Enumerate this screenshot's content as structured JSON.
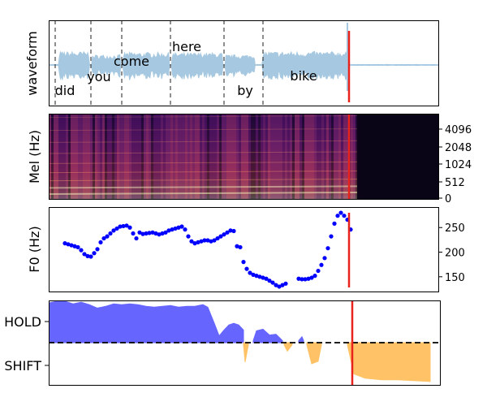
{
  "chart_data": [
    {
      "type": "line",
      "panel": "waveform",
      "ylabel": "waveform",
      "x_range": [
        0,
        2.4
      ],
      "color": "#a6c8e0",
      "words": [
        {
          "label": "did",
          "x": 0.1
        },
        {
          "label": "you",
          "x": 0.31
        },
        {
          "label": "come",
          "x": 0.51
        },
        {
          "label": "here",
          "x": 0.85
        },
        {
          "label": "by",
          "x": 1.21
        },
        {
          "label": "bike",
          "x": 1.57
        }
      ],
      "word_boundaries": [
        0.04,
        0.26,
        0.45,
        0.75,
        1.08,
        1.32
      ],
      "marker_x": 1.85,
      "marker_color": "#e8231c"
    },
    {
      "type": "heatmap",
      "panel": "mel",
      "ylabel": "Mel (Hz)",
      "yticks": [
        "0",
        "512",
        "1024",
        "2048",
        "4096"
      ],
      "x_range": [
        0,
        2.4
      ],
      "speech_end_x": 1.9,
      "marker_x": 1.85,
      "marker_color": "#e8231c"
    },
    {
      "type": "scatter",
      "panel": "f0",
      "ylabel": "F0 (Hz)",
      "yticks": [
        "150",
        "200",
        "250"
      ],
      "ylim": [
        120,
        290
      ],
      "x_range": [
        0,
        2.4
      ],
      "color": "#0000ff",
      "segments": [
        {
          "x": [
            0.1,
            0.12,
            0.14,
            0.16,
            0.18,
            0.2,
            0.22,
            0.24,
            0.26,
            0.28
          ],
          "y": [
            218,
            216,
            214,
            212,
            210,
            204,
            196,
            192,
            191,
            198
          ]
        },
        {
          "x": [
            0.3,
            0.32,
            0.34,
            0.36,
            0.38,
            0.4,
            0.42,
            0.44,
            0.46,
            0.48,
            0.5,
            0.52,
            0.54,
            0.56
          ],
          "y": [
            206,
            220,
            228,
            232,
            238,
            244,
            248,
            252,
            253,
            254,
            250,
            238,
            228,
            240
          ]
        },
        {
          "x": [
            0.58,
            0.6,
            0.62,
            0.64,
            0.66,
            0.68,
            0.7,
            0.72,
            0.74,
            0.76
          ],
          "y": [
            237,
            238,
            239,
            240,
            238,
            236,
            238,
            240,
            244,
            246
          ]
        },
        {
          "x": [
            0.78,
            0.8,
            0.82,
            0.84,
            0.86,
            0.88,
            0.9,
            0.92,
            0.94,
            0.96,
            0.98,
            1.0,
            1.02,
            1.04,
            1.06,
            1.08,
            1.1,
            1.12,
            1.14
          ],
          "y": [
            248,
            250,
            252,
            246,
            232,
            222,
            218,
            220,
            222,
            224,
            224,
            222,
            224,
            228,
            232,
            236,
            240,
            244,
            243
          ]
        },
        {
          "x": [
            1.16,
            1.18,
            1.2,
            1.22,
            1.24,
            1.26,
            1.28,
            1.3,
            1.32,
            1.34,
            1.36,
            1.38,
            1.4,
            1.42,
            1.44,
            1.46
          ],
          "y": [
            212,
            210,
            180,
            166,
            158,
            154,
            152,
            150,
            148,
            146,
            142,
            138,
            133,
            130,
            133,
            136
          ]
        },
        {
          "x": [
            1.54,
            1.56,
            1.58,
            1.6,
            1.62,
            1.64,
            1.66,
            1.68,
            1.7,
            1.72,
            1.74,
            1.76,
            1.78,
            1.8,
            1.82,
            1.84,
            1.86
          ],
          "y": [
            146,
            145,
            145,
            146,
            148,
            152,
            162,
            174,
            188,
            208,
            232,
            258,
            274,
            280,
            274,
            266,
            246
          ]
        }
      ],
      "marker_x": 1.85,
      "marker_color": "#e8231c"
    },
    {
      "type": "area",
      "panel": "hold_shift",
      "yticks": [
        "HOLD",
        "SHIFT"
      ],
      "ylim": [
        -1,
        1
      ],
      "x_range": [
        0,
        2.4
      ],
      "hold_color": "#6666ff",
      "shift_color": "#ffc266",
      "hold": {
        "x": [
          0.0,
          0.05,
          0.1,
          0.15,
          0.2,
          0.25,
          0.3,
          0.35,
          0.4,
          0.45,
          0.5,
          0.55,
          0.6,
          0.65,
          0.7,
          0.75,
          0.8,
          0.85,
          0.9,
          0.95,
          0.98,
          1.02,
          1.05,
          1.08,
          1.11,
          1.14,
          1.17,
          1.2
        ],
        "y": [
          0.94,
          0.98,
          0.98,
          0.92,
          0.96,
          0.9,
          0.82,
          0.86,
          0.92,
          0.9,
          0.92,
          0.9,
          0.86,
          0.84,
          0.86,
          0.88,
          0.84,
          0.86,
          0.86,
          0.9,
          0.84,
          0.46,
          0.16,
          0.3,
          0.42,
          0.46,
          0.42,
          0.3
        ]
      },
      "hold_small": [
        {
          "x": [
            1.26,
            1.28,
            1.32,
            1.36,
            1.4,
            1.44
          ],
          "y": [
            0.05,
            0.28,
            0.32,
            0.18,
            0.2,
            0.05
          ]
        },
        {
          "x": [
            1.54,
            1.56,
            1.57
          ],
          "y": [
            0.05,
            0.14,
            0.05
          ]
        }
      ],
      "shift": [
        {
          "x": [
            1.2,
            1.21,
            1.23
          ],
          "y": [
            -0.05,
            -0.46,
            -0.05
          ]
        },
        {
          "x": [
            1.45,
            1.47,
            1.5
          ],
          "y": [
            -0.05,
            -0.2,
            -0.05
          ]
        },
        {
          "x": [
            1.59,
            1.62,
            1.66,
            1.68
          ],
          "y": [
            -0.05,
            -0.5,
            -0.44,
            -0.05
          ]
        },
        {
          "x": [
            1.84,
            1.88,
            1.95,
            2.05,
            2.15,
            2.25,
            2.35
          ],
          "y": [
            -0.05,
            -0.74,
            -0.84,
            -0.88,
            -0.88,
            -0.9,
            -0.92
          ]
        }
      ],
      "marker_x": 1.87,
      "marker_color": "#e8231c"
    }
  ]
}
